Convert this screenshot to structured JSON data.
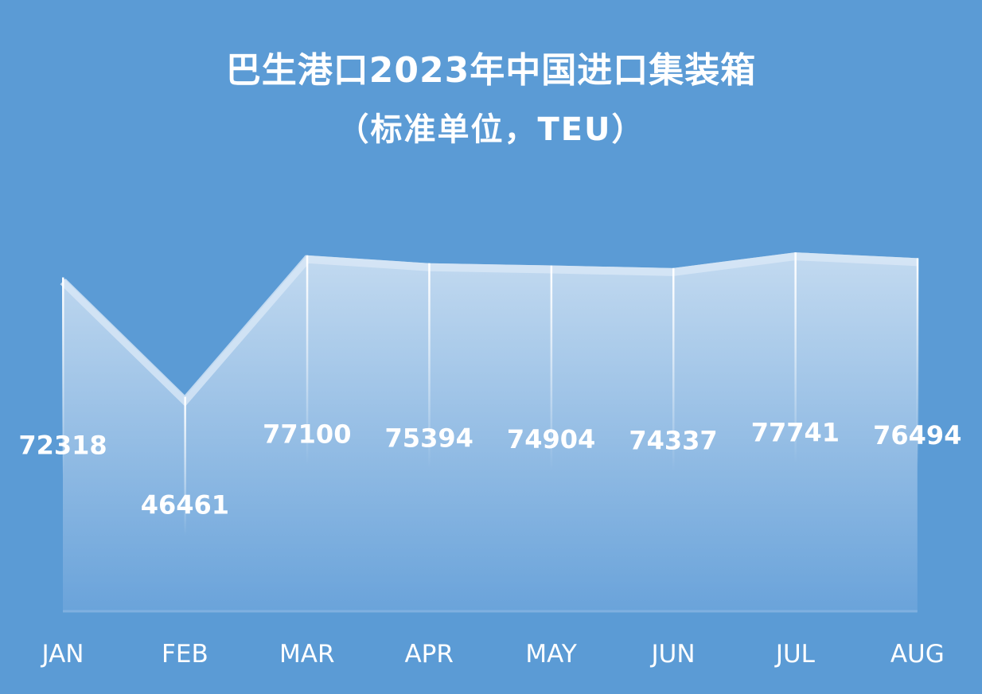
{
  "chart_data": {
    "type": "area",
    "title": "巴生港口2023年中国进口集装箱",
    "subtitle": "（标准单位，TEU）",
    "categories": [
      "JAN",
      "FEB",
      "MAR",
      "APR",
      "MAY",
      "JUN",
      "JUL",
      "AUG"
    ],
    "values": [
      72318,
      46461,
      77100,
      75394,
      74904,
      74337,
      77741,
      76494
    ],
    "data_labels": true,
    "grid": false,
    "legend": "none",
    "ylim": [
      0,
      100000
    ],
    "colors": {
      "background": "#5b9bd5",
      "fill_top": "#c3daf0",
      "fill_bottom": "#6aa3da",
      "edge": "#d8e7f6",
      "text": "#ffffff"
    }
  }
}
